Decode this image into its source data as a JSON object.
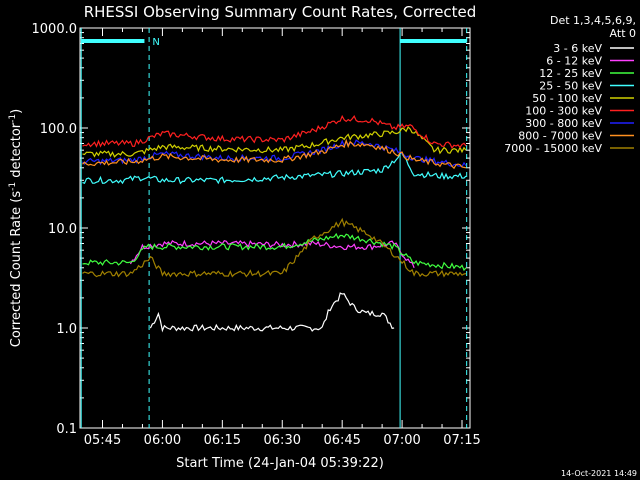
{
  "chart_data": {
    "type": "line",
    "title": "RHESSI Observing Summary Count Rates, Corrected",
    "xlabel": "Start Time (24-Jan-04 05:39:22)",
    "ylabel_main": "Corrected Count Rate (s",
    "ylabel_sup1": "-1",
    "ylabel_mid": " detector",
    "ylabel_sup2": "-1",
    "ylabel_end": ")",
    "yscale": "log",
    "xlim": [
      "05:39:22",
      "07:17:00"
    ],
    "ylim": [
      0.1,
      1000.0
    ],
    "x_ticks": [
      "05:45",
      "06:00",
      "06:15",
      "06:30",
      "06:45",
      "07:00",
      "07:15"
    ],
    "y_ticks": [
      "0.1",
      "1.0",
      "10.0",
      "100.0",
      "1000.0"
    ],
    "legend_header": [
      "Det 1,3,4,5,6,9,",
      "Att 0"
    ],
    "legend_placement": "right",
    "flag_label": "N",
    "timestamp": "14-Oct-2021 14:49",
    "series": [
      {
        "name": "3 - 6 keV",
        "color": "#ffffff",
        "x": [
          "05:57",
          "05:59",
          "06:00",
          "06:15",
          "06:30",
          "06:40",
          "06:42",
          "06:45",
          "06:48",
          "06:51",
          "06:55",
          "06:58"
        ],
        "values": [
          1.0,
          1.4,
          1.0,
          1.0,
          1.0,
          1.0,
          1.6,
          2.2,
          1.6,
          1.4,
          1.4,
          1.0
        ]
      },
      {
        "name": "6 - 12 keV",
        "color": "#ff40ff",
        "x": [
          "05:52",
          "05:55",
          "06:00",
          "06:15",
          "06:30",
          "06:38",
          "06:45",
          "06:52",
          "06:58",
          "07:03"
        ],
        "values": [
          4.5,
          6.5,
          7.0,
          7.0,
          6.8,
          7.0,
          6.5,
          6.5,
          7.0,
          4.0
        ]
      },
      {
        "name": "12 - 25 keV",
        "color": "#40ff40",
        "x": [
          "05:40",
          "05:52",
          "05:56",
          "06:00",
          "06:15",
          "06:30",
          "06:38",
          "06:45",
          "06:52",
          "06:58",
          "07:03",
          "07:16"
        ],
        "values": [
          4.5,
          4.5,
          6.5,
          6.5,
          6.5,
          6.5,
          7.5,
          8.5,
          7.5,
          6.5,
          4.5,
          4.0
        ]
      },
      {
        "name": "25 - 50 keV",
        "color": "#40ffff",
        "x": [
          "05:40",
          "05:50",
          "05:55",
          "06:00",
          "06:15",
          "06:30",
          "06:45",
          "06:55",
          "07:00",
          "07:03",
          "07:10",
          "07:16"
        ],
        "values": [
          30,
          30,
          32,
          30,
          30,
          32,
          35,
          38,
          55,
          35,
          33,
          33
        ]
      },
      {
        "name": "50 - 100 keV",
        "color": "#d0d000",
        "x": [
          "05:40",
          "05:53",
          "06:00",
          "06:15",
          "06:30",
          "06:38",
          "06:45",
          "06:52",
          "06:58",
          "07:02",
          "07:08",
          "07:16"
        ],
        "values": [
          55,
          55,
          65,
          62,
          60,
          68,
          80,
          85,
          90,
          100,
          60,
          60
        ]
      },
      {
        "name": "100 - 300 keV",
        "color": "#ff2020",
        "x": [
          "05:40",
          "05:53",
          "06:00",
          "06:15",
          "06:30",
          "06:38",
          "06:45",
          "06:52",
          "06:58",
          "07:02",
          "07:08",
          "07:16"
        ],
        "values": [
          70,
          70,
          88,
          78,
          76,
          95,
          125,
          120,
          100,
          105,
          70,
          66
        ]
      },
      {
        "name": "300 - 800 keV",
        "color": "#2020ff",
        "x": [
          "05:40",
          "05:53",
          "06:00",
          "06:15",
          "06:30",
          "06:40",
          "06:46",
          "06:52",
          "06:58",
          "07:03",
          "07:16"
        ],
        "values": [
          46,
          48,
          55,
          50,
          50,
          60,
          72,
          70,
          60,
          50,
          42
        ]
      },
      {
        "name": "800 - 7000 keV",
        "color": "#ff9020",
        "x": [
          "05:40",
          "05:53",
          "06:00",
          "06:15",
          "06:30",
          "06:40",
          "06:46",
          "06:52",
          "06:58",
          "07:03",
          "07:16"
        ],
        "values": [
          44,
          46,
          52,
          48,
          48,
          58,
          70,
          68,
          58,
          48,
          40
        ]
      },
      {
        "name": "7000 - 15000 keV",
        "color": "#a08000",
        "x": [
          "05:40",
          "05:52",
          "05:57",
          "06:00",
          "06:15",
          "06:30",
          "06:38",
          "06:45",
          "06:52",
          "06:58",
          "07:03",
          "07:16"
        ],
        "values": [
          3.5,
          3.5,
          5.0,
          3.5,
          3.5,
          3.5,
          8.0,
          11.5,
          8.5,
          5.5,
          3.5,
          3.5
        ]
      }
    ]
  }
}
